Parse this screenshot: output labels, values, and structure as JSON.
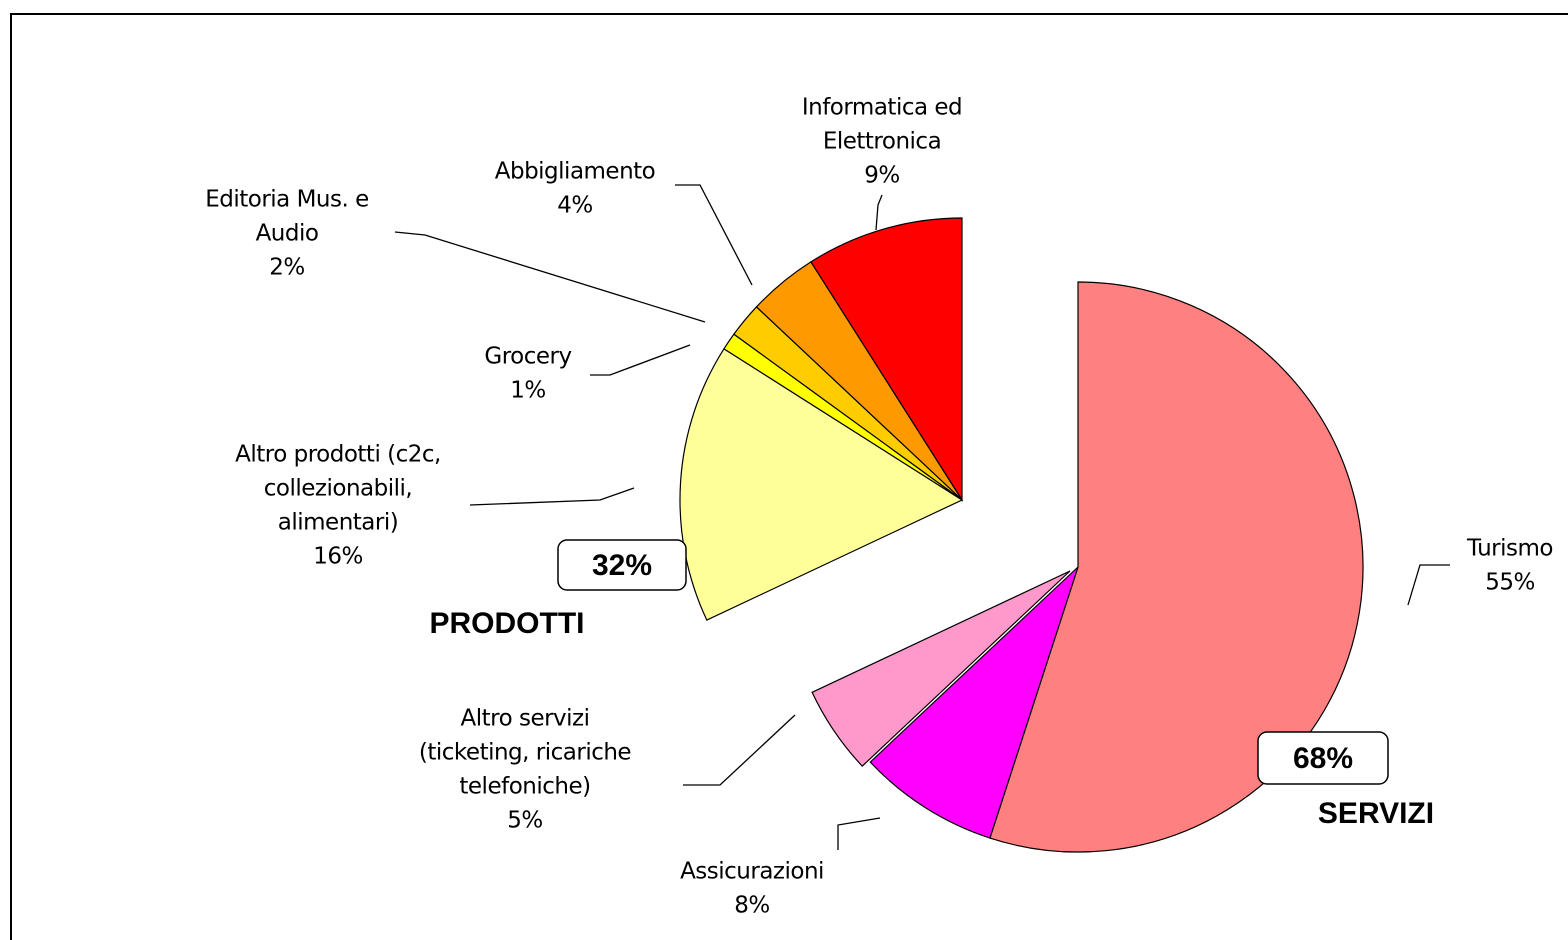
{
  "chart_data": {
    "type": "pie",
    "labels": [
      [
        "Informatica ed",
        "Elettronica"
      ],
      [
        "Abbigliamento"
      ],
      [
        "Editoria Mus. e",
        "Audio"
      ],
      [
        "Grocery"
      ],
      [
        "Altro prodotti (c2c,",
        "collezionabili,",
        "alimentari)"
      ],
      [
        "Turismo"
      ],
      [
        "Assicurazioni"
      ],
      [
        "Altro servizi",
        "(ticketing, ricariche",
        "telefoniche)"
      ]
    ],
    "values": [
      9,
      4,
      2,
      1,
      16,
      55,
      8,
      5
    ],
    "value_labels": [
      "9%",
      "4%",
      "2%",
      "1%",
      "16%",
      "55%",
      "8%",
      "5%"
    ],
    "colors": [
      "#ff0000",
      "#ff9900",
      "#ffcc00",
      "#ffff00",
      "#ffff99",
      "#ff8080",
      "#ff00ff",
      "#ff99cc"
    ],
    "groups": {
      "names": [
        "PRODOTTI",
        "SERVIZI"
      ],
      "values": [
        32,
        68
      ],
      "value_labels": [
        "32%",
        "68%"
      ]
    }
  }
}
